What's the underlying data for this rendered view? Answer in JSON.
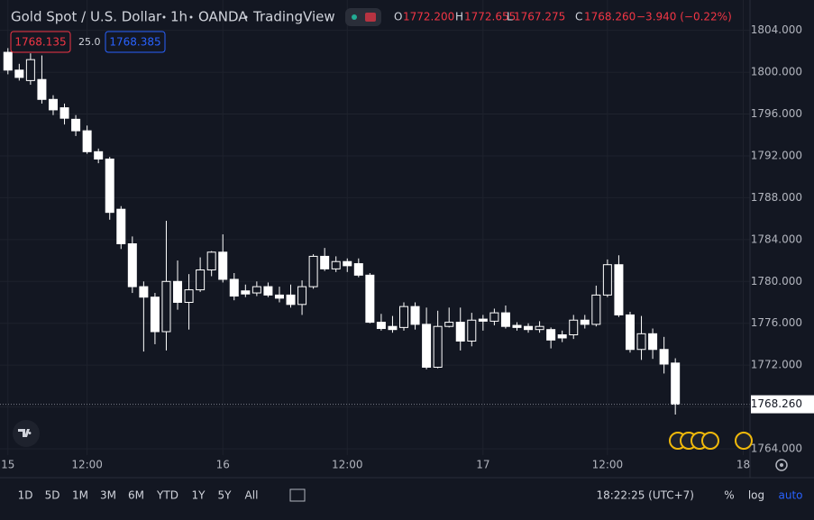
{
  "header": {
    "symbol": "Gold Spot / U.S. Dollar",
    "interval": "1h",
    "broker": "OANDA",
    "source": "TradingView",
    "o_label": "O",
    "o": "1772.200",
    "h_label": "H",
    "h": "1772.655",
    "l_label": "L",
    "l": "1767.275",
    "c_label": "C",
    "c": "1768.260",
    "change": "−3.940 (−0.22%)",
    "bid": "1768.135",
    "spread": "25.0",
    "ask": "1768.385"
  },
  "toolbar": {
    "ranges": [
      "1D",
      "5D",
      "1M",
      "3M",
      "6M",
      "YTD",
      "1Y",
      "5Y",
      "All"
    ],
    "time": "18:22:25 (UTC+7)",
    "percent": "%",
    "log": "log",
    "auto": "auto"
  },
  "chart_data": {
    "type": "candlestick",
    "up_color": "#ffffff",
    "down_color": "#ffffff",
    "open": [
      1801.9,
      1800.2,
      1799.2,
      1799.3,
      1797.4,
      1796.6,
      1795.5,
      1794.4,
      1792.4,
      1791.7,
      1786.9,
      1783.6,
      1779.5,
      1778.5,
      1775.2,
      1780,
      1778,
      1779.2,
      1781.1,
      1782.8,
      1780.2,
      1779.1,
      1778.9,
      1779.5,
      1778.7,
      1778.7,
      1777.8,
      1779.5,
      1782.4,
      1781.2,
      1781.9,
      1781.7,
      1780.6,
      1776.1,
      1775.7,
      1775.6,
      1777.6,
      1775.9,
      1771.8,
      1775.7,
      1776.1,
      1774.3,
      1776.4,
      1776.2,
      1777,
      1775.8,
      1775.7,
      1775.4,
      1775.4,
      1774.9,
      1774.9,
      1776.3,
      1775.9,
      1778.7,
      1781.6,
      1776.8,
      1773.5,
      1775,
      1773.5,
      1772.2
    ],
    "high": [
      1802.3,
      1800.8,
      1801.8,
      1801.6,
      1797.8,
      1797,
      1795.9,
      1794.9,
      1792.7,
      1791.9,
      1787.2,
      1784.3,
      1780,
      1778.9,
      1785.8,
      1782,
      1780.7,
      1782.3,
      1782.9,
      1784.5,
      1780.8,
      1779.7,
      1780,
      1779.9,
      1779.5,
      1779.7,
      1780.1,
      1782.6,
      1783.2,
      1782.4,
      1782.2,
      1782.2,
      1780.8,
      1776.9,
      1776.7,
      1778,
      1778,
      1777.5,
      1777.2,
      1777.5,
      1777.5,
      1777,
      1776.8,
      1777.4,
      1777.7,
      1776.1,
      1776,
      1776.2,
      1775.6,
      1775.3,
      1776.8,
      1776.8,
      1779.6,
      1782.1,
      1782.5,
      1777.1,
      1776.7,
      1775.5,
      1774.7,
      1772.655
    ],
    "low": [
      1799.8,
      1799.2,
      1798.8,
      1797,
      1795.9,
      1795,
      1793.9,
      1792.2,
      1791.3,
      1785.9,
      1783.1,
      1778.9,
      1773.3,
      1774,
      1773.4,
      1777.3,
      1775.4,
      1779,
      1780.5,
      1779.9,
      1778.2,
      1778.5,
      1778.6,
      1778.5,
      1778,
      1777.5,
      1776.8,
      1779.3,
      1781,
      1780.9,
      1780.9,
      1780.4,
      1776,
      1775.3,
      1775.1,
      1775.3,
      1775.4,
      1771.6,
      1771.7,
      1775.6,
      1773.4,
      1773.8,
      1775.3,
      1775.8,
      1775.5,
      1775.3,
      1775.1,
      1775.1,
      1773.6,
      1774.2,
      1774.5,
      1775.5,
      1775.7,
      1778.5,
      1776.6,
      1773.2,
      1772.5,
      1772.6,
      1771.2,
      1767.275
    ],
    "close": [
      1800.2,
      1799.5,
      1801.2,
      1797.4,
      1796.4,
      1795.6,
      1794.4,
      1792.4,
      1791.7,
      1786.6,
      1783.6,
      1779.5,
      1778.5,
      1775.2,
      1780,
      1778,
      1779.2,
      1781.1,
      1782.8,
      1780.2,
      1778.6,
      1778.8,
      1779.5,
      1778.7,
      1778.4,
      1777.8,
      1779.5,
      1782.4,
      1781.2,
      1781.9,
      1781.5,
      1780.6,
      1776.1,
      1775.5,
      1775.4,
      1777.6,
      1775.9,
      1771.8,
      1775.7,
      1776.1,
      1774.3,
      1776.3,
      1776.2,
      1777,
      1775.7,
      1775.6,
      1775.4,
      1775.7,
      1774.4,
      1774.6,
      1776.3,
      1775.9,
      1778.7,
      1781.6,
      1776.8,
      1773.5,
      1775,
      1773.5,
      1772.1,
      1768.26
    ],
    "xlim": [
      -0.7,
      65.6
    ],
    "xticks": [
      {
        "value": 0,
        "label": "15"
      },
      {
        "value": 7,
        "label": "12:00"
      },
      {
        "value": 19,
        "label": "16"
      },
      {
        "value": 30,
        "label": "12:00"
      },
      {
        "value": 42,
        "label": "17"
      },
      {
        "value": 53,
        "label": "12:00"
      },
      {
        "value": 65,
        "label": "18"
      }
    ],
    "ylim": [
      1763.4,
      1806.9
    ],
    "yticks": [
      {
        "value": 1764,
        "label": "1764.000"
      },
      {
        "value": 1768,
        "label": "1768.000"
      },
      {
        "value": 1772,
        "label": "1772.000"
      },
      {
        "value": 1776,
        "label": "1776.000"
      },
      {
        "value": 1780,
        "label": "1780.000"
      },
      {
        "value": 1784,
        "label": "1784.000"
      },
      {
        "value": 1788,
        "label": "1788.000"
      },
      {
        "value": 1792,
        "label": "1792.000"
      },
      {
        "value": 1796,
        "label": "1796.000"
      },
      {
        "value": 1800,
        "label": "1800.000"
      },
      {
        "value": 1804,
        "label": "1804.000"
      }
    ],
    "grid": true,
    "last_price": {
      "value": 1768.26,
      "label": "1768.260"
    }
  }
}
